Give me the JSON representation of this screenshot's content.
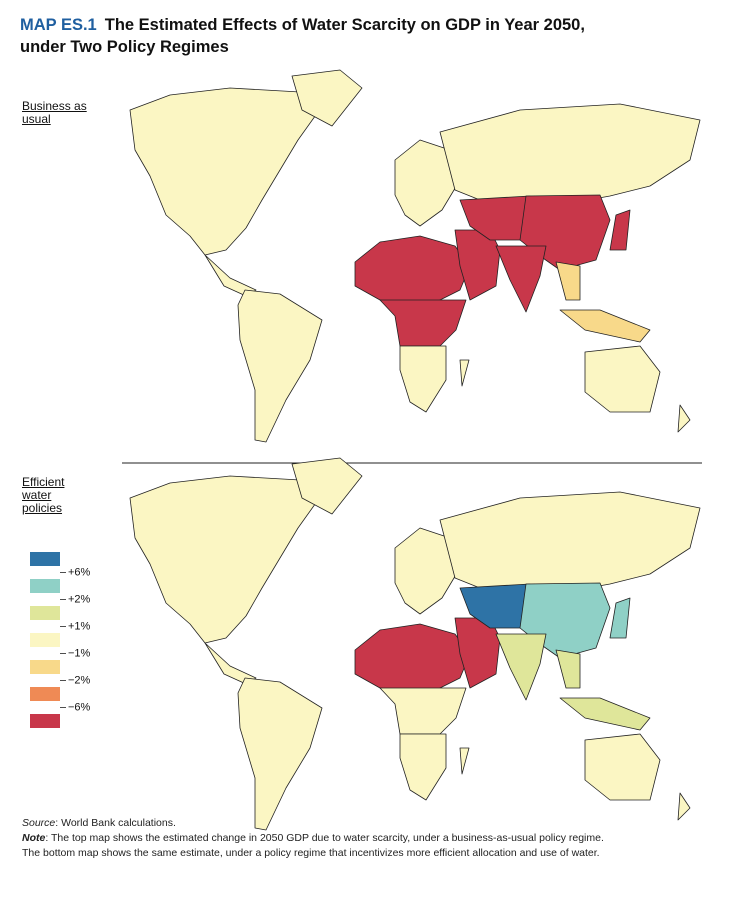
{
  "header": {
    "label": "MAP ES.1",
    "title_lines": [
      "The Estimated Effects of Water Scarcity on GDP in Year 2050,",
      "under Two Policy Regimes"
    ]
  },
  "maps": [
    {
      "label": "Business as usual"
    },
    {
      "label": "Efficient water policies"
    }
  ],
  "legend": {
    "colors": [
      "#2e73a6",
      "#8fd0c6",
      "#dfe69a",
      "#fbf6c3",
      "#f8d98a",
      "#ef8a55",
      "#c8374a"
    ],
    "labels": [
      "+6%",
      "+2%",
      "+1%",
      "−1%",
      "−2%",
      "−6%"
    ]
  },
  "source": {
    "label": "Source",
    "text": ": World Bank calculations."
  },
  "note": {
    "label": "Note",
    "lines": [
      ": The top map shows the estimated change in 2050 GDP due to water scarcity, under a business-as-usual policy regime.",
      "The bottom map shows the same estimate, under a policy regime that incentivizes more efficient allocation and use of water."
    ]
  }
}
